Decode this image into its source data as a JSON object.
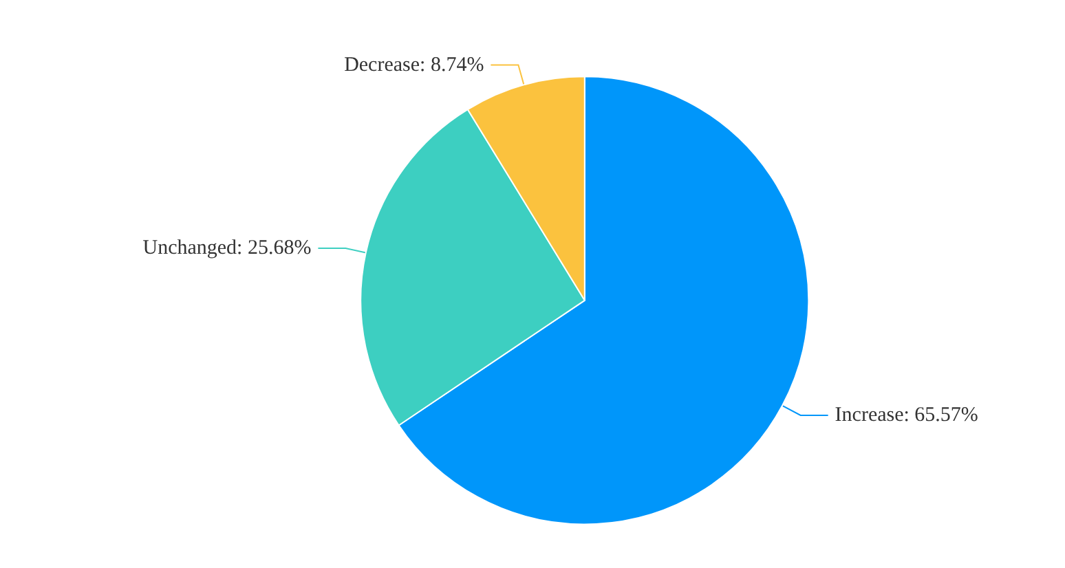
{
  "chart_data": {
    "type": "pie",
    "categories": [
      "Increase",
      "Unchanged",
      "Decrease"
    ],
    "values": [
      65.57,
      25.68,
      8.74
    ],
    "colors": [
      "#0096fa",
      "#3dcfc1",
      "#fbc23e"
    ],
    "value_labels": [
      "65.57%",
      "25.68%",
      "8.74%"
    ]
  }
}
